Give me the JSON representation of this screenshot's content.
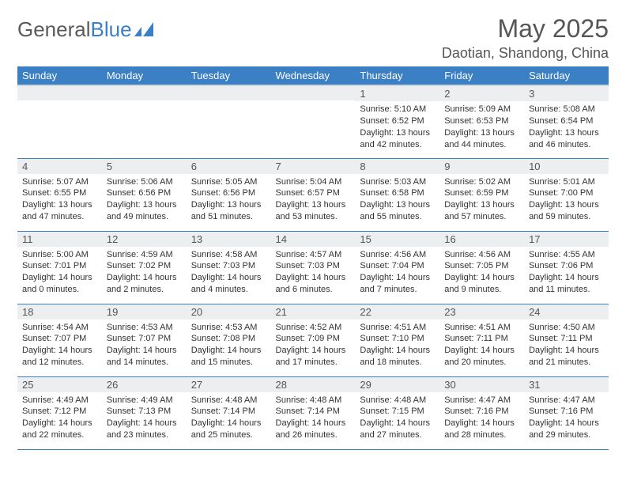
{
  "branding": {
    "logo_text_gray": "General",
    "logo_text_blue": "Blue",
    "logo_gray_color": "#5a5a5a",
    "logo_blue_color": "#3b7fc4"
  },
  "header": {
    "month_title": "May 2025",
    "location": "Daotian, Shandong, China"
  },
  "styling": {
    "header_bg": "#3b7fc4",
    "header_text": "#ffffff",
    "daynum_bg": "#eceeef",
    "cell_border": "#3b7fc4",
    "body_text": "#333333",
    "title_fontsize": 32,
    "location_fontsize": 18,
    "th_fontsize": 13,
    "cell_fontsize": 11
  },
  "day_headers": [
    "Sunday",
    "Monday",
    "Tuesday",
    "Wednesday",
    "Thursday",
    "Friday",
    "Saturday"
  ],
  "weeks": [
    [
      {
        "day": "",
        "lines": [
          "",
          "",
          "",
          ""
        ]
      },
      {
        "day": "",
        "lines": [
          "",
          "",
          "",
          ""
        ]
      },
      {
        "day": "",
        "lines": [
          "",
          "",
          "",
          ""
        ]
      },
      {
        "day": "",
        "lines": [
          "",
          "",
          "",
          ""
        ]
      },
      {
        "day": "1",
        "lines": [
          "Sunrise: 5:10 AM",
          "Sunset: 6:52 PM",
          "Daylight: 13 hours",
          "and 42 minutes."
        ]
      },
      {
        "day": "2",
        "lines": [
          "Sunrise: 5:09 AM",
          "Sunset: 6:53 PM",
          "Daylight: 13 hours",
          "and 44 minutes."
        ]
      },
      {
        "day": "3",
        "lines": [
          "Sunrise: 5:08 AM",
          "Sunset: 6:54 PM",
          "Daylight: 13 hours",
          "and 46 minutes."
        ]
      }
    ],
    [
      {
        "day": "4",
        "lines": [
          "Sunrise: 5:07 AM",
          "Sunset: 6:55 PM",
          "Daylight: 13 hours",
          "and 47 minutes."
        ]
      },
      {
        "day": "5",
        "lines": [
          "Sunrise: 5:06 AM",
          "Sunset: 6:56 PM",
          "Daylight: 13 hours",
          "and 49 minutes."
        ]
      },
      {
        "day": "6",
        "lines": [
          "Sunrise: 5:05 AM",
          "Sunset: 6:56 PM",
          "Daylight: 13 hours",
          "and 51 minutes."
        ]
      },
      {
        "day": "7",
        "lines": [
          "Sunrise: 5:04 AM",
          "Sunset: 6:57 PM",
          "Daylight: 13 hours",
          "and 53 minutes."
        ]
      },
      {
        "day": "8",
        "lines": [
          "Sunrise: 5:03 AM",
          "Sunset: 6:58 PM",
          "Daylight: 13 hours",
          "and 55 minutes."
        ]
      },
      {
        "day": "9",
        "lines": [
          "Sunrise: 5:02 AM",
          "Sunset: 6:59 PM",
          "Daylight: 13 hours",
          "and 57 minutes."
        ]
      },
      {
        "day": "10",
        "lines": [
          "Sunrise: 5:01 AM",
          "Sunset: 7:00 PM",
          "Daylight: 13 hours",
          "and 59 minutes."
        ]
      }
    ],
    [
      {
        "day": "11",
        "lines": [
          "Sunrise: 5:00 AM",
          "Sunset: 7:01 PM",
          "Daylight: 14 hours",
          "and 0 minutes."
        ]
      },
      {
        "day": "12",
        "lines": [
          "Sunrise: 4:59 AM",
          "Sunset: 7:02 PM",
          "Daylight: 14 hours",
          "and 2 minutes."
        ]
      },
      {
        "day": "13",
        "lines": [
          "Sunrise: 4:58 AM",
          "Sunset: 7:03 PM",
          "Daylight: 14 hours",
          "and 4 minutes."
        ]
      },
      {
        "day": "14",
        "lines": [
          "Sunrise: 4:57 AM",
          "Sunset: 7:03 PM",
          "Daylight: 14 hours",
          "and 6 minutes."
        ]
      },
      {
        "day": "15",
        "lines": [
          "Sunrise: 4:56 AM",
          "Sunset: 7:04 PM",
          "Daylight: 14 hours",
          "and 7 minutes."
        ]
      },
      {
        "day": "16",
        "lines": [
          "Sunrise: 4:56 AM",
          "Sunset: 7:05 PM",
          "Daylight: 14 hours",
          "and 9 minutes."
        ]
      },
      {
        "day": "17",
        "lines": [
          "Sunrise: 4:55 AM",
          "Sunset: 7:06 PM",
          "Daylight: 14 hours",
          "and 11 minutes."
        ]
      }
    ],
    [
      {
        "day": "18",
        "lines": [
          "Sunrise: 4:54 AM",
          "Sunset: 7:07 PM",
          "Daylight: 14 hours",
          "and 12 minutes."
        ]
      },
      {
        "day": "19",
        "lines": [
          "Sunrise: 4:53 AM",
          "Sunset: 7:07 PM",
          "Daylight: 14 hours",
          "and 14 minutes."
        ]
      },
      {
        "day": "20",
        "lines": [
          "Sunrise: 4:53 AM",
          "Sunset: 7:08 PM",
          "Daylight: 14 hours",
          "and 15 minutes."
        ]
      },
      {
        "day": "21",
        "lines": [
          "Sunrise: 4:52 AM",
          "Sunset: 7:09 PM",
          "Daylight: 14 hours",
          "and 17 minutes."
        ]
      },
      {
        "day": "22",
        "lines": [
          "Sunrise: 4:51 AM",
          "Sunset: 7:10 PM",
          "Daylight: 14 hours",
          "and 18 minutes."
        ]
      },
      {
        "day": "23",
        "lines": [
          "Sunrise: 4:51 AM",
          "Sunset: 7:11 PM",
          "Daylight: 14 hours",
          "and 20 minutes."
        ]
      },
      {
        "day": "24",
        "lines": [
          "Sunrise: 4:50 AM",
          "Sunset: 7:11 PM",
          "Daylight: 14 hours",
          "and 21 minutes."
        ]
      }
    ],
    [
      {
        "day": "25",
        "lines": [
          "Sunrise: 4:49 AM",
          "Sunset: 7:12 PM",
          "Daylight: 14 hours",
          "and 22 minutes."
        ]
      },
      {
        "day": "26",
        "lines": [
          "Sunrise: 4:49 AM",
          "Sunset: 7:13 PM",
          "Daylight: 14 hours",
          "and 23 minutes."
        ]
      },
      {
        "day": "27",
        "lines": [
          "Sunrise: 4:48 AM",
          "Sunset: 7:14 PM",
          "Daylight: 14 hours",
          "and 25 minutes."
        ]
      },
      {
        "day": "28",
        "lines": [
          "Sunrise: 4:48 AM",
          "Sunset: 7:14 PM",
          "Daylight: 14 hours",
          "and 26 minutes."
        ]
      },
      {
        "day": "29",
        "lines": [
          "Sunrise: 4:48 AM",
          "Sunset: 7:15 PM",
          "Daylight: 14 hours",
          "and 27 minutes."
        ]
      },
      {
        "day": "30",
        "lines": [
          "Sunrise: 4:47 AM",
          "Sunset: 7:16 PM",
          "Daylight: 14 hours",
          "and 28 minutes."
        ]
      },
      {
        "day": "31",
        "lines": [
          "Sunrise: 4:47 AM",
          "Sunset: 7:16 PM",
          "Daylight: 14 hours",
          "and 29 minutes."
        ]
      }
    ]
  ]
}
